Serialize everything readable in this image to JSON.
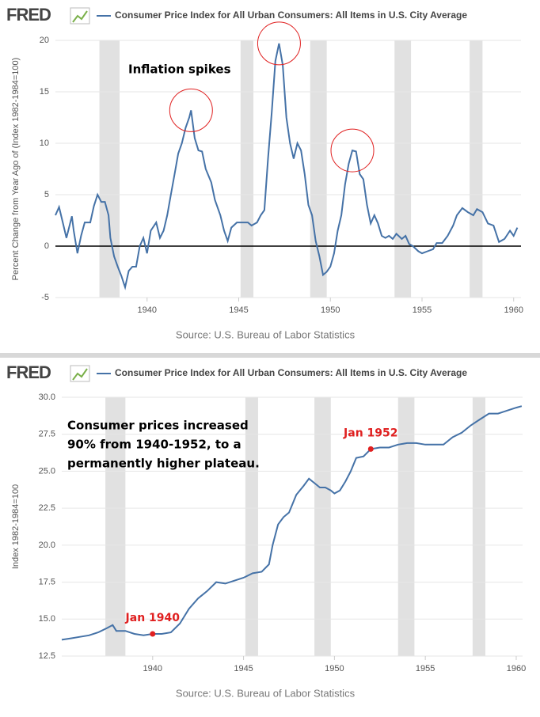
{
  "chart_data": [
    {
      "type": "line",
      "logo": "FRED",
      "ylabel": "Percent Change from Year Ago of (Index 1982-1984=100)",
      "source": "Source: U.S. Bureau of Labor Statistics",
      "annotations": [
        "Inflation spikes"
      ],
      "highlights": [
        {
          "x": 1942.4,
          "y": 13.2
        },
        {
          "x": 1947.2,
          "y": 19.7
        },
        {
          "x": 1951.2,
          "y": 9.3
        }
      ],
      "recessions": [
        [
          1937.4,
          1938.5
        ],
        [
          1945.1,
          1945.8
        ],
        [
          1948.9,
          1949.8
        ],
        [
          1953.5,
          1954.4
        ],
        [
          1957.6,
          1958.3
        ]
      ],
      "zero_line": true,
      "xlim": [
        1935,
        1960.4
      ],
      "xticks": [
        1940,
        1945,
        1950,
        1955,
        1960
      ],
      "ylim": [
        -5,
        20
      ],
      "yticks": [
        -5,
        0,
        5,
        10,
        15,
        20
      ],
      "grid": true,
      "x": [
        1935.0,
        1935.2,
        1935.4,
        1935.6,
        1935.9,
        1936.0,
        1936.2,
        1936.4,
        1936.6,
        1936.9,
        1937.1,
        1937.3,
        1937.5,
        1937.7,
        1937.9,
        1938.0,
        1938.2,
        1938.4,
        1938.6,
        1938.8,
        1939.0,
        1939.2,
        1939.4,
        1939.6,
        1939.8,
        1940.0,
        1940.2,
        1940.5,
        1940.7,
        1940.9,
        1941.1,
        1941.3,
        1941.5,
        1941.7,
        1941.9,
        1942.1,
        1942.3,
        1942.4,
        1942.6,
        1942.8,
        1943.0,
        1943.2,
        1943.5,
        1943.7,
        1944.0,
        1944.2,
        1944.4,
        1944.6,
        1944.9,
        1945.2,
        1945.5,
        1945.7,
        1946.0,
        1946.2,
        1946.4,
        1946.6,
        1946.8,
        1947.0,
        1947.2,
        1947.4,
        1947.6,
        1947.8,
        1948.0,
        1948.2,
        1948.4,
        1948.6,
        1948.8,
        1949.0,
        1949.2,
        1949.4,
        1949.6,
        1949.8,
        1950.0,
        1950.2,
        1950.4,
        1950.6,
        1950.8,
        1951.0,
        1951.2,
        1951.4,
        1951.6,
        1951.8,
        1952.0,
        1952.2,
        1952.4,
        1952.6,
        1952.8,
        1953.0,
        1953.2,
        1953.4,
        1953.6,
        1953.9,
        1954.1,
        1954.3,
        1954.5,
        1954.8,
        1955.0,
        1955.3,
        1955.6,
        1955.8,
        1956.1,
        1956.4,
        1956.7,
        1956.9,
        1957.2,
        1957.5,
        1957.8,
        1958.0,
        1958.3,
        1958.6,
        1958.9,
        1959.2,
        1959.5,
        1959.8,
        1960.0,
        1960.2
      ],
      "series": [
        {
          "name": "Consumer Price Index for All Urban Consumers: All Items in U.S. City Average",
          "color": "#4572a7",
          "values": [
            3.0,
            3.8,
            2.3,
            0.8,
            2.9,
            1.5,
            -0.7,
            1.0,
            2.3,
            2.3,
            3.9,
            5.0,
            4.3,
            4.3,
            3.0,
            0.8,
            -1.0,
            -2.0,
            -2.9,
            -4.0,
            -2.4,
            -2.0,
            -2.0,
            0.0,
            0.8,
            -0.7,
            1.5,
            2.3,
            0.8,
            1.5,
            3.0,
            5.0,
            7.0,
            9.0,
            10.0,
            11.5,
            12.5,
            13.2,
            10.5,
            9.3,
            9.2,
            7.5,
            6.2,
            4.5,
            3.0,
            1.5,
            0.5,
            1.8,
            2.3,
            2.3,
            2.3,
            2.0,
            2.3,
            3.0,
            3.5,
            8.5,
            13.0,
            18.0,
            19.7,
            17.6,
            12.5,
            10.0,
            8.5,
            10.0,
            9.3,
            7.0,
            4.0,
            3.0,
            0.5,
            -1.0,
            -2.8,
            -2.5,
            -2.0,
            -0.7,
            1.5,
            3.0,
            6.0,
            8.0,
            9.3,
            9.2,
            7.0,
            6.5,
            4.0,
            2.2,
            3.0,
            2.2,
            1.0,
            0.8,
            1.0,
            0.7,
            1.2,
            0.7,
            1.0,
            0.2,
            0.0,
            -0.5,
            -0.7,
            -0.5,
            -0.3,
            0.3,
            0.3,
            1.0,
            2.0,
            3.0,
            3.7,
            3.3,
            3.0,
            3.6,
            3.3,
            2.2,
            2.0,
            0.4,
            0.7,
            1.5,
            1.0,
            1.8
          ]
        }
      ]
    },
    {
      "type": "line",
      "logo": "FRED",
      "ylabel": "Index 1982-1984=100",
      "source": "Source: U.S. Bureau of Labor Statistics",
      "annotations": [
        "Consumer prices increased",
        "90% from 1940-1952, to a",
        "permanently higher plateau."
      ],
      "points": [
        {
          "label": "Jan 1940",
          "x": 1940.0,
          "y": 14.0
        },
        {
          "label": "Jan 1952",
          "x": 1952.0,
          "y": 26.5
        }
      ],
      "recessions": [
        [
          1937.4,
          1938.5
        ],
        [
          1945.1,
          1945.8
        ],
        [
          1948.9,
          1949.8
        ],
        [
          1953.5,
          1954.4
        ],
        [
          1957.6,
          1958.3
        ]
      ],
      "zero_line": false,
      "xlim": [
        1935,
        1960.35
      ],
      "xticks": [
        1940,
        1945,
        1950,
        1955,
        1960
      ],
      "ylim": [
        12.5,
        30
      ],
      "yticks": [
        12.5,
        {
          "value": 15,
          "label": "15.0"
        },
        17.5,
        {
          "value": 20,
          "label": "20.0"
        },
        22.5,
        {
          "value": 25,
          "label": "25.0"
        },
        27.5,
        {
          "value": 30,
          "label": "30.0"
        }
      ],
      "grid": true,
      "x": [
        1935.0,
        1935.5,
        1936.0,
        1936.5,
        1937.0,
        1937.5,
        1937.8,
        1938.0,
        1938.5,
        1939.0,
        1939.5,
        1940.0,
        1940.5,
        1941.0,
        1941.5,
        1942.0,
        1942.5,
        1943.0,
        1943.5,
        1944.0,
        1944.5,
        1945.0,
        1945.5,
        1946.0,
        1946.4,
        1946.6,
        1946.9,
        1947.2,
        1947.5,
        1947.9,
        1948.3,
        1948.6,
        1948.9,
        1949.2,
        1949.5,
        1949.8,
        1950.0,
        1950.3,
        1950.6,
        1950.9,
        1951.2,
        1951.6,
        1952.0,
        1952.5,
        1953.0,
        1953.5,
        1954.0,
        1954.5,
        1955.0,
        1955.5,
        1956.0,
        1956.5,
        1957.0,
        1957.5,
        1958.0,
        1958.5,
        1959.0,
        1959.5,
        1960.0,
        1960.3
      ],
      "series": [
        {
          "name": "Consumer Price Index for All Urban Consumers: All Items in U.S. City Average",
          "color": "#4572a7",
          "values": [
            13.6,
            13.7,
            13.8,
            13.9,
            14.1,
            14.4,
            14.6,
            14.2,
            14.2,
            14.0,
            13.9,
            14.0,
            14.0,
            14.1,
            14.7,
            15.7,
            16.4,
            16.9,
            17.5,
            17.4,
            17.6,
            17.8,
            18.1,
            18.2,
            18.7,
            20.0,
            21.4,
            21.9,
            22.2,
            23.4,
            24.0,
            24.5,
            24.2,
            23.9,
            23.9,
            23.7,
            23.5,
            23.7,
            24.3,
            25.0,
            25.9,
            26.0,
            26.5,
            26.6,
            26.6,
            26.8,
            26.9,
            26.9,
            26.8,
            26.8,
            26.8,
            27.3,
            27.6,
            28.1,
            28.5,
            28.9,
            28.9,
            29.1,
            29.3,
            29.4
          ]
        }
      ]
    }
  ]
}
